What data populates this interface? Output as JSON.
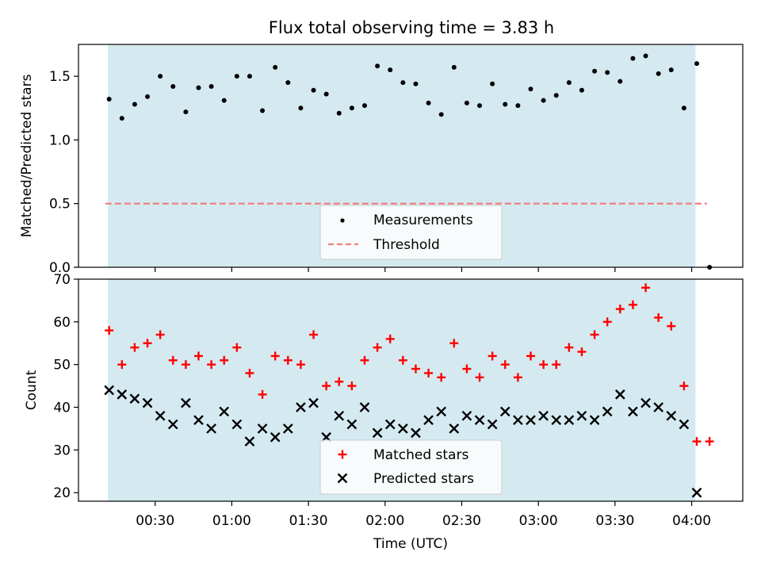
{
  "chart_data": [
    {
      "type": "scatter",
      "title": "Flux total observing time = 3.83 h",
      "xlabel": "",
      "ylabel": "Matched/Predicted stars",
      "ylim": [
        0,
        1.75
      ],
      "yticks": [
        "0.0",
        "0.5",
        "1.0",
        "1.5"
      ],
      "ytick_values": [
        0,
        0.5,
        1.0,
        1.5
      ],
      "observing_window_minutes": [
        11.5,
        241.5
      ],
      "threshold": 0.5,
      "legend_position": "lower-center",
      "legend": [
        {
          "name": "Measurements",
          "marker": "dot",
          "color": "#000000"
        },
        {
          "name": "Threshold",
          "marker": "dashed-line",
          "color": "#f08080"
        }
      ],
      "series": [
        {
          "name": "Measurements",
          "color": "#000000",
          "x": [
            "00:12",
            "00:17",
            "00:22",
            "00:27",
            "00:32",
            "00:37",
            "00:42",
            "00:47",
            "00:52",
            "00:57",
            "01:02",
            "01:07",
            "01:12",
            "01:17",
            "01:22",
            "01:27",
            "01:32",
            "01:37",
            "01:42",
            "01:47",
            "01:52",
            "01:57",
            "02:02",
            "02:07",
            "02:12",
            "02:17",
            "02:22",
            "02:27",
            "02:32",
            "02:37",
            "02:42",
            "02:47",
            "02:52",
            "02:57",
            "03:02",
            "03:07",
            "03:12",
            "03:17",
            "03:22",
            "03:27",
            "03:32",
            "03:37",
            "03:42",
            "03:47",
            "03:52",
            "03:57",
            "04:02",
            "04:07"
          ],
          "y": [
            1.32,
            1.17,
            1.28,
            1.34,
            1.5,
            1.42,
            1.22,
            1.41,
            1.42,
            1.31,
            1.5,
            1.5,
            1.23,
            1.57,
            1.45,
            1.25,
            1.39,
            1.36,
            1.21,
            1.25,
            1.27,
            1.58,
            1.55,
            1.45,
            1.44,
            1.29,
            1.2,
            1.57,
            1.29,
            1.27,
            1.44,
            1.28,
            1.27,
            1.4,
            1.31,
            1.35,
            1.45,
            1.39,
            1.54,
            1.53,
            1.46,
            1.64,
            1.66,
            1.52,
            1.55,
            1.25,
            1.6,
            0.0
          ]
        }
      ]
    },
    {
      "type": "scatter",
      "title": "",
      "xlabel": "Time (UTC)",
      "ylabel": "Count",
      "ylim": [
        18,
        70
      ],
      "yticks": [
        "20",
        "30",
        "40",
        "50",
        "60",
        "70"
      ],
      "ytick_values": [
        20,
        30,
        40,
        50,
        60,
        70
      ],
      "xlim_minutes": [
        0,
        260
      ],
      "xticks": [
        "00:30",
        "01:00",
        "01:30",
        "02:00",
        "02:30",
        "03:00",
        "03:30",
        "04:00"
      ],
      "xtick_minutes": [
        30,
        60,
        90,
        120,
        150,
        180,
        210,
        240
      ],
      "observing_window_minutes": [
        11.5,
        241.5
      ],
      "legend_position": "lower-center",
      "legend": [
        {
          "name": "Matched stars",
          "marker": "plus",
          "color": "#ff0000"
        },
        {
          "name": "Predicted stars",
          "marker": "x",
          "color": "#000000"
        }
      ],
      "series": [
        {
          "name": "Matched stars",
          "color": "#ff0000",
          "x": [
            "00:12",
            "00:17",
            "00:22",
            "00:27",
            "00:32",
            "00:37",
            "00:42",
            "00:47",
            "00:52",
            "00:57",
            "01:02",
            "01:07",
            "01:12",
            "01:17",
            "01:22",
            "01:27",
            "01:32",
            "01:37",
            "01:42",
            "01:47",
            "01:52",
            "01:57",
            "02:02",
            "02:07",
            "02:12",
            "02:17",
            "02:22",
            "02:27",
            "02:32",
            "02:37",
            "02:42",
            "02:47",
            "02:52",
            "02:57",
            "03:02",
            "03:07",
            "03:12",
            "03:17",
            "03:22",
            "03:27",
            "03:32",
            "03:37",
            "03:42",
            "03:47",
            "03:52",
            "03:57",
            "04:02",
            "04:07"
          ],
          "y": [
            58,
            50,
            54,
            55,
            57,
            51,
            50,
            52,
            50,
            51,
            54,
            48,
            43,
            52,
            51,
            50,
            57,
            45,
            46,
            45,
            51,
            54,
            56,
            51,
            49,
            48,
            47,
            55,
            49,
            47,
            52,
            50,
            47,
            52,
            50,
            50,
            54,
            53,
            57,
            60,
            63,
            64,
            68,
            61,
            59,
            45,
            32,
            32
          ]
        },
        {
          "name": "Predicted stars",
          "color": "#000000",
          "x": [
            "00:12",
            "00:17",
            "00:22",
            "00:27",
            "00:32",
            "00:37",
            "00:42",
            "00:47",
            "00:52",
            "00:57",
            "01:02",
            "01:07",
            "01:12",
            "01:17",
            "01:22",
            "01:27",
            "01:32",
            "01:37",
            "01:42",
            "01:47",
            "01:52",
            "01:57",
            "02:02",
            "02:07",
            "02:12",
            "02:17",
            "02:22",
            "02:27",
            "02:32",
            "02:37",
            "02:42",
            "02:47",
            "02:52",
            "02:57",
            "03:02",
            "03:07",
            "03:12",
            "03:17",
            "03:22",
            "03:27",
            "03:32",
            "03:37",
            "03:42",
            "03:47",
            "03:52",
            "03:57",
            "04:02"
          ],
          "y": [
            44,
            43,
            42,
            41,
            38,
            36,
            41,
            37,
            35,
            39,
            36,
            32,
            35,
            33,
            35,
            40,
            41,
            33,
            38,
            36,
            40,
            34,
            36,
            35,
            34,
            37,
            39,
            35,
            38,
            37,
            36,
            39,
            37,
            37,
            38,
            37,
            37,
            38,
            37,
            39,
            43,
            39,
            41,
            40,
            38,
            36,
            20
          ]
        }
      ]
    }
  ],
  "colors": {
    "observing_span": "#d4eaf0",
    "threshold": "#f08080"
  }
}
